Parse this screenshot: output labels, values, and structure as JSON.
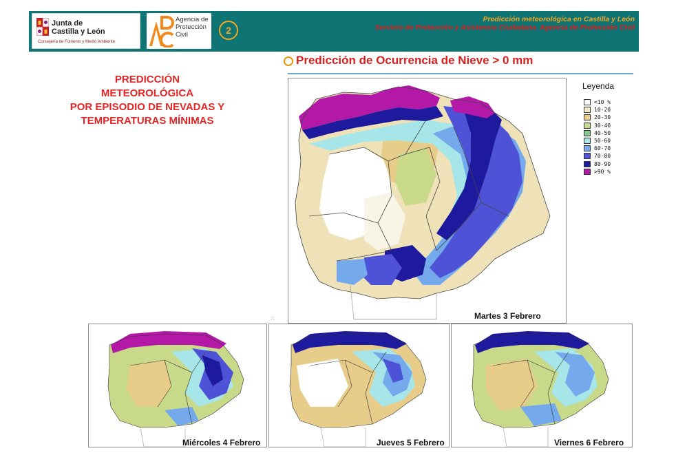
{
  "header": {
    "jcyl_line1": "Junta de",
    "jcyl_line2": "Castilla y León",
    "jcyl_sub": "Consejería de Fomento y Medio Ambiente",
    "apc_text_1": "Agencia de",
    "apc_text_2": "Protección",
    "apc_text_3": "Civil",
    "page_number": "2",
    "right_line1": "Predicción meteorológica en Castilla y León",
    "right_line2": "Servicio de Protección y Asistencia Ciudadana. Agencia de Protección Civil"
  },
  "slide_title": "Predicción de Ocurrencia de Nieve > 0 mm",
  "left_title": {
    "line1": "PREDICCIÓN",
    "line2": "METEOROLÓGICA",
    "line3": "POR EPISODIO DE NEVADAS Y",
    "line4": "TEMPERATURAS MÍNIMAS"
  },
  "legend": {
    "title": "Leyenda",
    "items": [
      {
        "label": "<10 %",
        "color": "#ffffff"
      },
      {
        "label": "10-20",
        "color": "#f3e9c8"
      },
      {
        "label": "20-30",
        "color": "#e7cc8a"
      },
      {
        "label": "30-40",
        "color": "#c9d98a"
      },
      {
        "label": "40-50",
        "color": "#86c98a"
      },
      {
        "label": "50-60",
        "color": "#a6e6e8"
      },
      {
        "label": "60-70",
        "color": "#74a9ec"
      },
      {
        "label": "70-80",
        "color": "#4e52d6"
      },
      {
        "label": "80-90",
        "color": "#1d1a9e"
      },
      {
        "label": ">90 %",
        "color": "#b318a6"
      }
    ]
  },
  "maps": {
    "main_caption": "Martes 3 Febrero",
    "small_1_caption": "Miércoles 4 Febrero",
    "small_2_caption": "Jueves 5 Febrero",
    "small_3_caption": "Viernes 6 Febrero"
  },
  "colors": {
    "header_bg": "#0e7474",
    "accent_orange": "#f5a623",
    "accent_red": "#e02626",
    "rule_blue": "#6fa8cf"
  }
}
